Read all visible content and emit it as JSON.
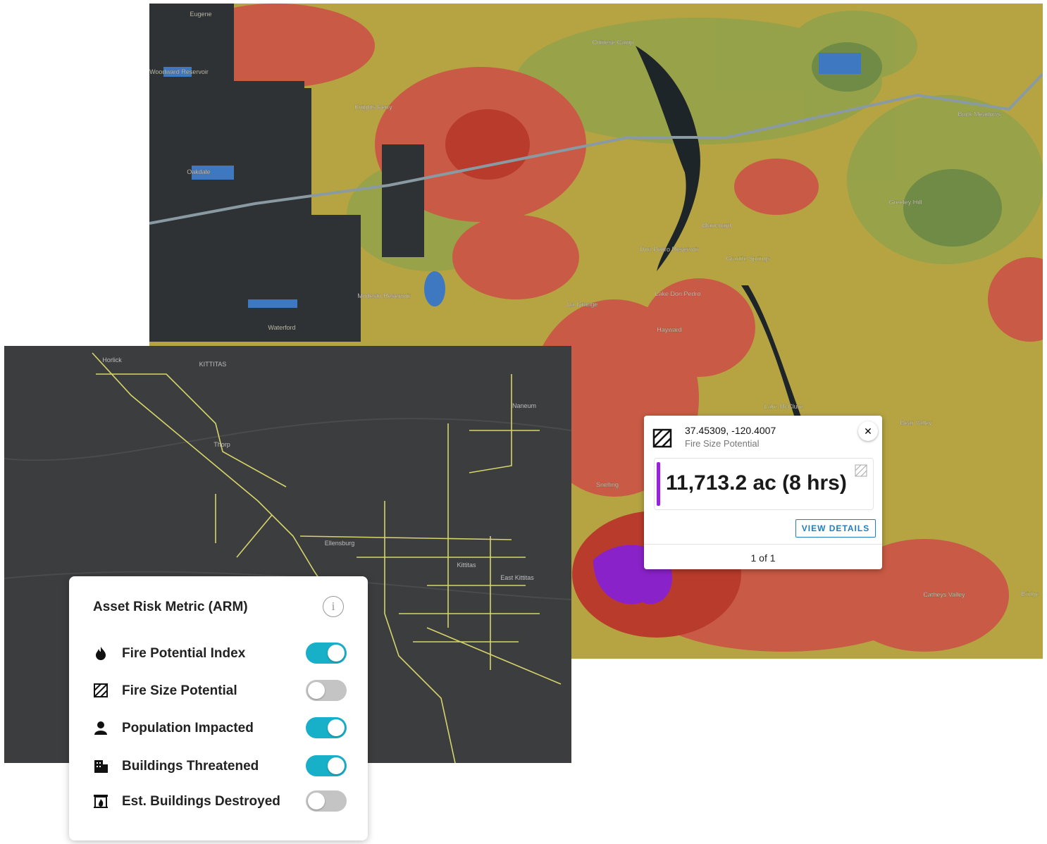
{
  "top_map": {
    "place_labels": [
      "Eugene",
      "Woodward Reservoir",
      "Knights Ferry",
      "Chinese Camp",
      "Oakdale",
      "Buck Meadows",
      "Greeley Hill",
      "Blanchard",
      "Don Pedro Reservoir",
      "Granite Springs",
      "Modesto Reservoir",
      "La Grange",
      "Lake Don Pedro",
      "Waterford",
      "Hayward",
      "Lake McClure",
      "Bear Valley",
      "Snelling",
      "Catheys Valley",
      "Bridge"
    ]
  },
  "bottom_map": {
    "place_labels": [
      "Horlick",
      "KITTITAS",
      "Naneum",
      "Thorp",
      "Ellensburg",
      "Kittitas",
      "East Kittitas"
    ]
  },
  "popup": {
    "coordinates": "37.45309, -120.4007",
    "layer": "Fire Size Potential",
    "value": "11,713.2 ac (8 hrs)",
    "button": "VIEW DETAILS",
    "pagination": "1 of 1"
  },
  "panel": {
    "title": "Asset Risk Metric (ARM)",
    "layers": [
      {
        "label": "Fire Potential Index",
        "enabled": true
      },
      {
        "label": "Fire Size Potential",
        "enabled": false
      },
      {
        "label": "Population Impacted",
        "enabled": true
      },
      {
        "label": "Buildings Threatened",
        "enabled": true
      },
      {
        "label": "Est. Buildings Destroyed",
        "enabled": false
      }
    ]
  }
}
